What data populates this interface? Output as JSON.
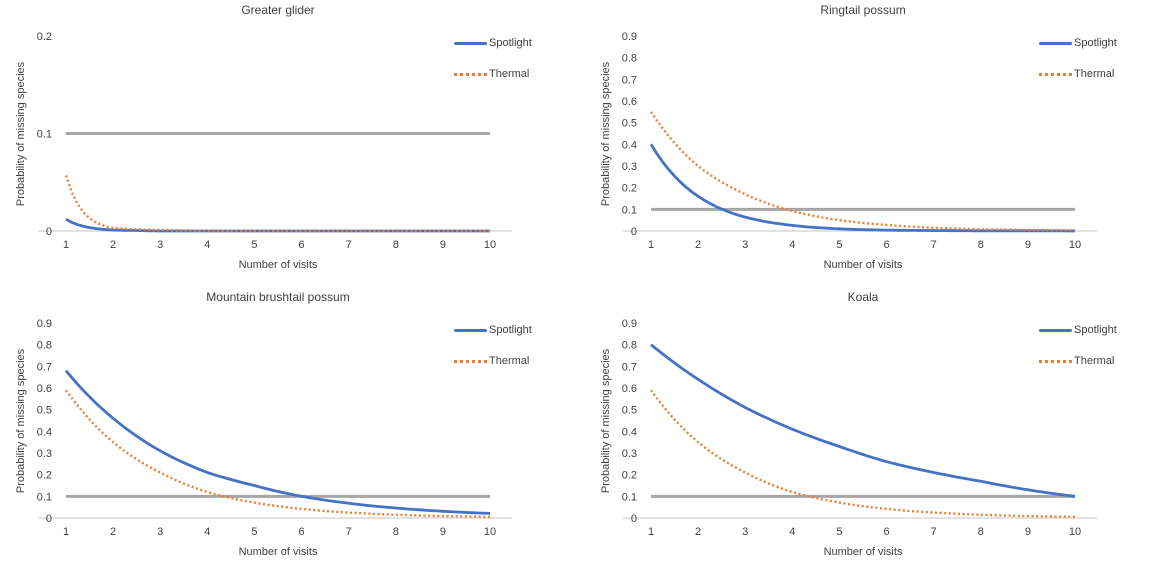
{
  "colors": {
    "spotlight": "#4472C4",
    "thermal": "#ED7D31",
    "threshold_line": "#A6A6A6",
    "axis_line": "#D9D9D9",
    "text": "#404040"
  },
  "chart_data": [
    {
      "type": "line",
      "title": "Greater glider",
      "xlabel": "Number of visits",
      "ylabel": "Probability of missing species",
      "x": [
        1,
        2,
        3,
        4,
        5,
        6,
        7,
        8,
        9,
        10
      ],
      "xtick_labels": [
        "1",
        "2",
        "3",
        "4",
        "5",
        "6",
        "7",
        "8",
        "9",
        "10"
      ],
      "ylim": [
        0,
        0.2
      ],
      "ytick_labels": [
        "0",
        "0.1",
        "0.2"
      ],
      "threshold": 0.1,
      "grid": false,
      "legend_position": "upper-right",
      "series": [
        {
          "name": "Spotlight",
          "line_style": "solid",
          "color": "#4472C4",
          "values": [
            0.012,
            0.001,
            0,
            0,
            0,
            0,
            0,
            0,
            0,
            0
          ]
        },
        {
          "name": "Thermal",
          "line_style": "dotted",
          "color": "#ED7D31",
          "values": [
            0.057,
            0.003,
            0.001,
            0,
            0,
            0,
            0,
            0,
            0,
            0
          ]
        }
      ]
    },
    {
      "type": "line",
      "title": "Ringtail possum",
      "xlabel": "Number of visits",
      "ylabel": "Probability of missing species",
      "x": [
        1,
        2,
        3,
        4,
        5,
        6,
        7,
        8,
        9,
        10
      ],
      "xtick_labels": [
        "1",
        "2",
        "3",
        "4",
        "5",
        "6",
        "7",
        "8",
        "9",
        "10"
      ],
      "ylim": [
        0,
        0.9
      ],
      "ytick_labels": [
        "0",
        "0.1",
        "0.2",
        "0.3",
        "0.4",
        "0.5",
        "0.6",
        "0.7",
        "0.8",
        "0.9"
      ],
      "threshold": 0.1,
      "grid": false,
      "legend_position": "upper-right",
      "series": [
        {
          "name": "Spotlight",
          "line_style": "solid",
          "color": "#4472C4",
          "values": [
            0.4,
            0.16,
            0.064,
            0.026,
            0.01,
            0.004,
            0.002,
            0.001,
            0.001,
            0
          ]
        },
        {
          "name": "Thermal",
          "line_style": "dotted",
          "color": "#ED7D31",
          "values": [
            0.55,
            0.3,
            0.17,
            0.092,
            0.05,
            0.028,
            0.015,
            0.008,
            0.005,
            0.003
          ]
        }
      ]
    },
    {
      "type": "line",
      "title": "Mountain brushtail possum",
      "xlabel": "Number of visits",
      "ylabel": "Probability of missing species",
      "x": [
        1,
        2,
        3,
        4,
        5,
        6,
        7,
        8,
        9,
        10
      ],
      "xtick_labels": [
        "1",
        "2",
        "3",
        "4",
        "5",
        "6",
        "7",
        "8",
        "9",
        "10"
      ],
      "ylim": [
        0,
        0.9
      ],
      "ytick_labels": [
        "0",
        "0.1",
        "0.2",
        "0.3",
        "0.4",
        "0.5",
        "0.6",
        "0.7",
        "0.8",
        "0.9"
      ],
      "threshold": 0.1,
      "grid": false,
      "legend_position": "upper-right",
      "series": [
        {
          "name": "Spotlight",
          "line_style": "solid",
          "color": "#4472C4",
          "values": [
            0.68,
            0.46,
            0.31,
            0.21,
            0.15,
            0.1,
            0.068,
            0.046,
            0.031,
            0.021
          ]
        },
        {
          "name": "Thermal",
          "line_style": "dotted",
          "color": "#ED7D31",
          "values": [
            0.59,
            0.35,
            0.21,
            0.12,
            0.071,
            0.042,
            0.025,
            0.015,
            0.009,
            0.005
          ]
        }
      ]
    },
    {
      "type": "line",
      "title": "Koala",
      "xlabel": "Number of visits",
      "ylabel": "Probability of missing species",
      "x": [
        1,
        2,
        3,
        4,
        5,
        6,
        7,
        8,
        9,
        10
      ],
      "xtick_labels": [
        "1",
        "2",
        "3",
        "4",
        "5",
        "6",
        "7",
        "8",
        "9",
        "10"
      ],
      "ylim": [
        0,
        0.9
      ],
      "ytick_labels": [
        "0",
        "0.1",
        "0.2",
        "0.3",
        "0.4",
        "0.5",
        "0.6",
        "0.7",
        "0.8",
        "0.9"
      ],
      "threshold": 0.1,
      "grid": false,
      "legend_position": "upper-right",
      "series": [
        {
          "name": "Spotlight",
          "line_style": "solid",
          "color": "#4472C4",
          "values": [
            0.8,
            0.64,
            0.51,
            0.41,
            0.33,
            0.26,
            0.21,
            0.17,
            0.13,
            0.1
          ]
        },
        {
          "name": "Thermal",
          "line_style": "dotted",
          "color": "#ED7D31",
          "values": [
            0.59,
            0.35,
            0.21,
            0.12,
            0.071,
            0.042,
            0.025,
            0.015,
            0.009,
            0.005
          ]
        }
      ]
    }
  ]
}
